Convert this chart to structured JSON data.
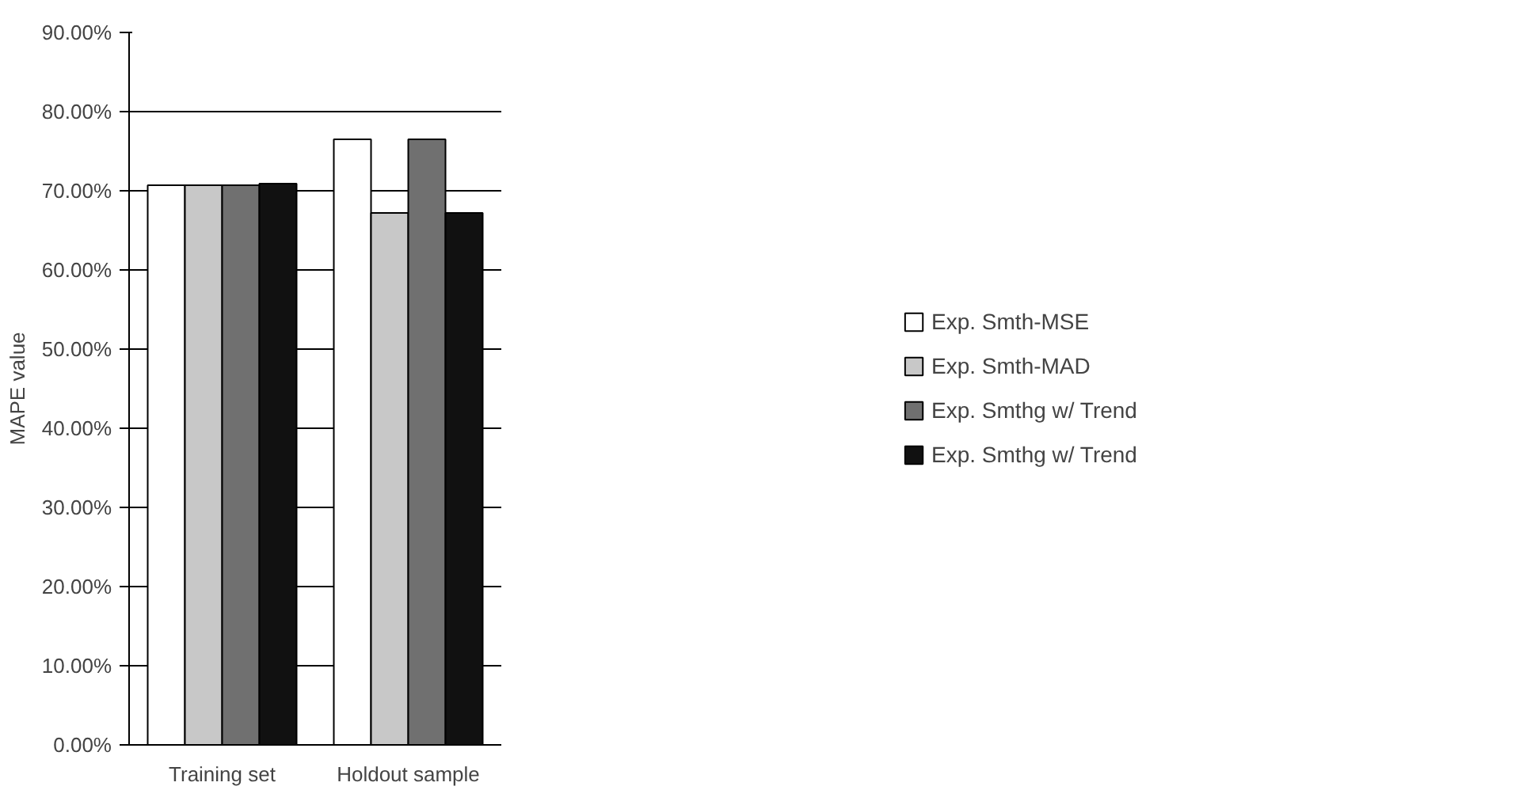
{
  "chart_data": {
    "type": "bar",
    "ylabel": "MAPE value",
    "categories": [
      "Training set",
      "Holdout sample"
    ],
    "series": [
      {
        "name": "Exp. Smth-MSE",
        "color": "#ffffff",
        "values": [
          70.7,
          76.5
        ]
      },
      {
        "name": "Exp. Smth-MAD",
        "color": "#c8c8c8",
        "values": [
          70.7,
          67.2
        ]
      },
      {
        "name": "Exp. Smthg w/ Trend",
        "color": "#707070",
        "values": [
          70.7,
          76.5
        ]
      },
      {
        "name": "Exp. Smthg w/ Trend",
        "color": "#111111",
        "values": [
          70.9,
          67.2
        ]
      }
    ],
    "ylim": [
      0,
      90
    ],
    "yticks": [
      {
        "value": 0,
        "label": "0.00%"
      },
      {
        "value": 10,
        "label": "10.00%"
      },
      {
        "value": 20,
        "label": "20.00%"
      },
      {
        "value": 30,
        "label": "30.00%"
      },
      {
        "value": 40,
        "label": "40.00%"
      },
      {
        "value": 50,
        "label": "50.00%"
      },
      {
        "value": 60,
        "label": "60.00%"
      },
      {
        "value": 70,
        "label": "70.00%"
      },
      {
        "value": 80,
        "label": "80.00%"
      },
      {
        "value": 90,
        "label": "90.00%"
      }
    ],
    "grid": "y",
    "legend": "right"
  }
}
